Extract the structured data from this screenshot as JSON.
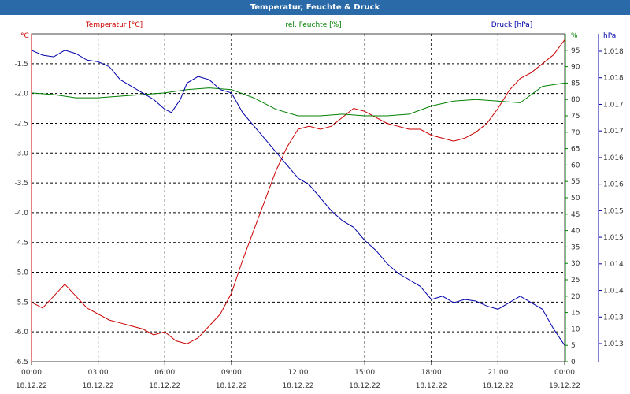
{
  "chart_data": {
    "type": "line",
    "title": "Temperatur, Feuchte & Druck",
    "x_ticks": [
      {
        "time": "00:00",
        "date": "18.12.22"
      },
      {
        "time": "03:00",
        "date": "18.12.22"
      },
      {
        "time": "06:00",
        "date": "18.12.22"
      },
      {
        "time": "09:00",
        "date": "18.12.22"
      },
      {
        "time": "12:00",
        "date": "18.12.22"
      },
      {
        "time": "15:00",
        "date": "18.12.22"
      },
      {
        "time": "18:00",
        "date": "18.12.22"
      },
      {
        "time": "21:00",
        "date": "18.12.22"
      },
      {
        "time": "00:00",
        "date": "19.12.22"
      }
    ],
    "x_range_hours": [
      0,
      24
    ],
    "grid": true,
    "axes": {
      "left": {
        "unit": "°C",
        "range": [
          -6.5,
          -1.0
        ],
        "ticks": [
          "-1.5",
          "-2.0",
          "-2.5",
          "-3.0",
          "-3.5",
          "-4.0",
          "-4.5",
          "-5.0",
          "-5.5",
          "-6.0",
          "-6.5"
        ],
        "color": "#cc0000"
      },
      "right": {
        "unit": "%",
        "range": [
          0,
          100
        ],
        "ticks": [
          "0",
          "5",
          "10",
          "15",
          "20",
          "25",
          "30",
          "35",
          "40",
          "45",
          "50",
          "55",
          "60",
          "65",
          "70",
          "75",
          "80",
          "85",
          "90",
          "95"
        ],
        "color": "#008000"
      },
      "far_right": {
        "unit": "hPa",
        "ticks": [
          "1.018",
          "1.018",
          "1.017",
          "1.017",
          "1.016",
          "1.016",
          "1.015",
          "1.015",
          "1.014",
          "1.014",
          "1.013",
          "1.013"
        ],
        "color": "#0000aa"
      }
    },
    "series": [
      {
        "name": "Temperatur [°C]",
        "axis": "left",
        "color": "#cc0000",
        "points": [
          [
            0,
            -5.5
          ],
          [
            0.5,
            -5.6
          ],
          [
            1.0,
            -5.4
          ],
          [
            1.5,
            -5.2
          ],
          [
            2.0,
            -5.4
          ],
          [
            2.5,
            -5.6
          ],
          [
            3.0,
            -5.7
          ],
          [
            3.5,
            -5.8
          ],
          [
            4.0,
            -5.85
          ],
          [
            4.5,
            -5.9
          ],
          [
            5.0,
            -5.95
          ],
          [
            5.5,
            -6.05
          ],
          [
            6.0,
            -6.0
          ],
          [
            6.5,
            -6.15
          ],
          [
            7.0,
            -6.2
          ],
          [
            7.5,
            -6.1
          ],
          [
            8.0,
            -5.9
          ],
          [
            8.5,
            -5.7
          ],
          [
            9.0,
            -5.35
          ],
          [
            9.5,
            -4.8
          ],
          [
            10.0,
            -4.3
          ],
          [
            10.5,
            -3.8
          ],
          [
            11.0,
            -3.3
          ],
          [
            11.5,
            -2.9
          ],
          [
            12.0,
            -2.6
          ],
          [
            12.5,
            -2.55
          ],
          [
            13.0,
            -2.6
          ],
          [
            13.5,
            -2.55
          ],
          [
            14.0,
            -2.4
          ],
          [
            14.5,
            -2.25
          ],
          [
            15.0,
            -2.3
          ],
          [
            15.5,
            -2.4
          ],
          [
            16.0,
            -2.5
          ],
          [
            16.5,
            -2.55
          ],
          [
            17.0,
            -2.6
          ],
          [
            17.5,
            -2.6
          ],
          [
            18.0,
            -2.7
          ],
          [
            18.5,
            -2.75
          ],
          [
            19.0,
            -2.8
          ],
          [
            19.5,
            -2.75
          ],
          [
            20.0,
            -2.65
          ],
          [
            20.5,
            -2.5
          ],
          [
            21.0,
            -2.25
          ],
          [
            21.5,
            -1.95
          ],
          [
            22.0,
            -1.75
          ],
          [
            22.5,
            -1.65
          ],
          [
            23.0,
            -1.5
          ],
          [
            23.5,
            -1.35
          ],
          [
            24.0,
            -1.1
          ]
        ]
      },
      {
        "name": "rel. Feuchte [%]",
        "axis": "right",
        "color": "#008000",
        "points": [
          [
            0,
            82
          ],
          [
            1,
            81.5
          ],
          [
            2,
            80.5
          ],
          [
            3,
            80.5
          ],
          [
            4,
            81
          ],
          [
            5,
            81.5
          ],
          [
            6,
            82
          ],
          [
            7,
            83
          ],
          [
            8,
            83.5
          ],
          [
            9,
            83
          ],
          [
            10,
            80.5
          ],
          [
            11,
            77
          ],
          [
            12,
            75
          ],
          [
            13,
            75
          ],
          [
            14,
            75.5
          ],
          [
            15,
            75
          ],
          [
            16,
            75
          ],
          [
            17,
            75.5
          ],
          [
            18,
            78
          ],
          [
            19,
            79.5
          ],
          [
            20,
            80
          ],
          [
            21,
            79.5
          ],
          [
            22,
            79
          ],
          [
            23,
            84
          ],
          [
            24,
            85
          ]
        ]
      },
      {
        "name": "Druck [hPa]",
        "axis": "right",
        "color": "#0000aa",
        "points": [
          [
            0,
            95
          ],
          [
            0.5,
            93.5
          ],
          [
            1.0,
            93
          ],
          [
            1.5,
            95
          ],
          [
            2.0,
            94
          ],
          [
            2.5,
            92
          ],
          [
            3.0,
            91.5
          ],
          [
            3.5,
            90
          ],
          [
            4.0,
            86
          ],
          [
            4.5,
            84
          ],
          [
            5.0,
            82
          ],
          [
            5.5,
            80
          ],
          [
            6.0,
            77
          ],
          [
            6.3,
            76
          ],
          [
            6.7,
            80
          ],
          [
            7.0,
            85
          ],
          [
            7.5,
            87
          ],
          [
            8.0,
            86
          ],
          [
            8.5,
            83
          ],
          [
            9.0,
            82
          ],
          [
            9.5,
            76
          ],
          [
            10.0,
            72
          ],
          [
            10.5,
            68
          ],
          [
            11.0,
            64
          ],
          [
            11.5,
            60
          ],
          [
            12.0,
            56
          ],
          [
            12.5,
            54
          ],
          [
            13.0,
            50
          ],
          [
            13.5,
            46
          ],
          [
            14.0,
            43
          ],
          [
            14.5,
            41
          ],
          [
            15.0,
            37
          ],
          [
            15.5,
            34
          ],
          [
            16.0,
            30
          ],
          [
            16.5,
            27
          ],
          [
            17.0,
            25
          ],
          [
            17.5,
            23
          ],
          [
            18.0,
            19
          ],
          [
            18.5,
            20
          ],
          [
            19.0,
            18
          ],
          [
            19.5,
            19
          ],
          [
            20.0,
            18.5
          ],
          [
            20.5,
            17
          ],
          [
            21.0,
            16
          ],
          [
            21.5,
            18
          ],
          [
            22.0,
            20
          ],
          [
            22.5,
            18
          ],
          [
            23.0,
            16
          ],
          [
            23.5,
            10
          ],
          [
            24.0,
            5
          ]
        ]
      }
    ]
  }
}
